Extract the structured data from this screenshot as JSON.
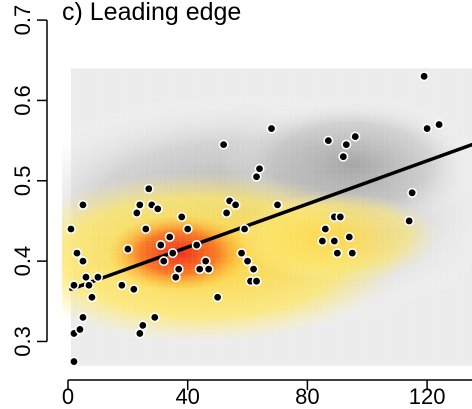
{
  "chart_data": {
    "type": "scatter",
    "title": "c) Leading edge",
    "xlabel": "",
    "ylabel": "",
    "xlim": [
      -2,
      135
    ],
    "ylim": [
      0.262,
      0.725
    ],
    "x_ticks": [
      0,
      40,
      80,
      120
    ],
    "y_ticks": [
      0.3,
      0.4,
      0.5,
      0.6,
      0.7
    ],
    "grid": false,
    "legend": "none",
    "density_background": true,
    "points": [
      {
        "x": 2,
        "y": 0.275
      },
      {
        "x": 2,
        "y": 0.31
      },
      {
        "x": 4,
        "y": 0.315
      },
      {
        "x": 5,
        "y": 0.33
      },
      {
        "x": 1,
        "y": 0.44
      },
      {
        "x": 3,
        "y": 0.41
      },
      {
        "x": 5,
        "y": 0.47
      },
      {
        "x": 5,
        "y": 0.4
      },
      {
        "x": 6,
        "y": 0.38
      },
      {
        "x": 2,
        "y": 0.37
      },
      {
        "x": 7,
        "y": 0.37
      },
      {
        "x": 8,
        "y": 0.355
      },
      {
        "x": 10,
        "y": 0.38
      },
      {
        "x": 18,
        "y": 0.37
      },
      {
        "x": 20,
        "y": 0.415
      },
      {
        "x": 22,
        "y": 0.365
      },
      {
        "x": 23,
        "y": 0.46
      },
      {
        "x": 24,
        "y": 0.47
      },
      {
        "x": 24,
        "y": 0.31
      },
      {
        "x": 25,
        "y": 0.32
      },
      {
        "x": 26,
        "y": 0.44
      },
      {
        "x": 27,
        "y": 0.49
      },
      {
        "x": 28,
        "y": 0.47
      },
      {
        "x": 29,
        "y": 0.33
      },
      {
        "x": 30,
        "y": 0.465
      },
      {
        "x": 31,
        "y": 0.42
      },
      {
        "x": 32,
        "y": 0.4
      },
      {
        "x": 34,
        "y": 0.43
      },
      {
        "x": 35,
        "y": 0.41
      },
      {
        "x": 36,
        "y": 0.38
      },
      {
        "x": 37,
        "y": 0.39
      },
      {
        "x": 38,
        "y": 0.455
      },
      {
        "x": 40,
        "y": 0.44
      },
      {
        "x": 43,
        "y": 0.42
      },
      {
        "x": 44,
        "y": 0.39
      },
      {
        "x": 46,
        "y": 0.4
      },
      {
        "x": 47,
        "y": 0.39
      },
      {
        "x": 50,
        "y": 0.355
      },
      {
        "x": 52,
        "y": 0.545
      },
      {
        "x": 53,
        "y": 0.46
      },
      {
        "x": 54,
        "y": 0.475
      },
      {
        "x": 56,
        "y": 0.47
      },
      {
        "x": 58,
        "y": 0.41
      },
      {
        "x": 59,
        "y": 0.44
      },
      {
        "x": 60,
        "y": 0.4
      },
      {
        "x": 61,
        "y": 0.375
      },
      {
        "x": 62,
        "y": 0.39
      },
      {
        "x": 63,
        "y": 0.375
      },
      {
        "x": 63,
        "y": 0.505
      },
      {
        "x": 64,
        "y": 0.515
      },
      {
        "x": 68,
        "y": 0.565
      },
      {
        "x": 70,
        "y": 0.47
      },
      {
        "x": 85,
        "y": 0.425
      },
      {
        "x": 86,
        "y": 0.44
      },
      {
        "x": 87,
        "y": 0.55
      },
      {
        "x": 89,
        "y": 0.425
      },
      {
        "x": 89,
        "y": 0.455
      },
      {
        "x": 90,
        "y": 0.41
      },
      {
        "x": 91,
        "y": 0.455
      },
      {
        "x": 92,
        "y": 0.53
      },
      {
        "x": 93,
        "y": 0.545
      },
      {
        "x": 94,
        "y": 0.43
      },
      {
        "x": 95,
        "y": 0.41
      },
      {
        "x": 96,
        "y": 0.555
      },
      {
        "x": 114,
        "y": 0.45
      },
      {
        "x": 115,
        "y": 0.485
      },
      {
        "x": 119,
        "y": 0.63
      },
      {
        "x": 120,
        "y": 0.565
      },
      {
        "x": 124,
        "y": 0.57
      }
    ],
    "trend_line": {
      "x": [
        1,
        135
      ],
      "y": [
        0.365,
        0.545
      ]
    }
  }
}
